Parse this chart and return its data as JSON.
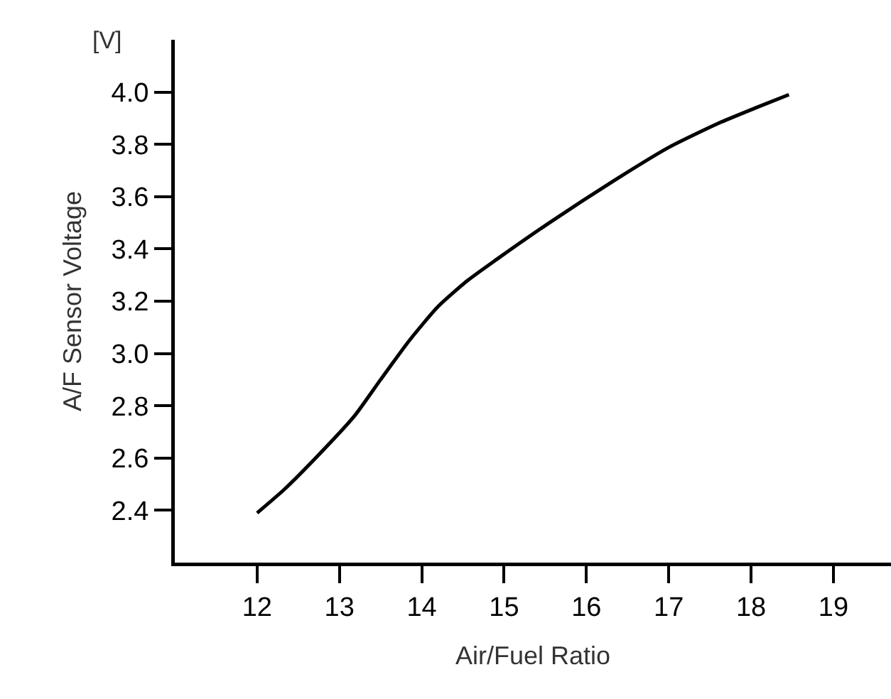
{
  "chart_data": {
    "type": "line",
    "xlabel": "Air/Fuel Ratio",
    "ylabel": "A/F Sensor Voltage",
    "annotations": [
      "[V]"
    ],
    "x": [
      12,
      12.33,
      12.68,
      13.18,
      13.5,
      13.85,
      14.2,
      14.56,
      14.91,
      15.55,
      16.43,
      17.01,
      17.6,
      18.06,
      18.46
    ],
    "series": [
      {
        "color": "#000000",
        "values": [
          2.39,
          2.48,
          2.59,
          2.76,
          2.9,
          3.05,
          3.18,
          3.28,
          3.36,
          3.5,
          3.68,
          3.79,
          3.88,
          3.94,
          3.99
        ]
      }
    ],
    "xlim": [
      11,
      19.7
    ],
    "xticks": [
      12,
      13,
      14,
      15,
      16,
      17,
      18,
      19
    ],
    "ylim": [
      2.2,
      4.2
    ],
    "yticks": [
      {
        "value": 2.4,
        "label": "2.4"
      },
      {
        "value": 2.6,
        "label": "2.6"
      },
      {
        "value": 2.8,
        "label": "2.8"
      },
      {
        "value": 3.0,
        "label": "3.0"
      },
      {
        "value": 3.2,
        "label": "3.2"
      },
      {
        "value": 3.4,
        "label": "3.4"
      },
      {
        "value": 3.6,
        "label": "3.6"
      },
      {
        "value": 3.8,
        "label": "3.8"
      },
      {
        "value": 4.0,
        "label": "4.0"
      }
    ],
    "grid": false,
    "marker": "none",
    "line_style": "solid"
  }
}
